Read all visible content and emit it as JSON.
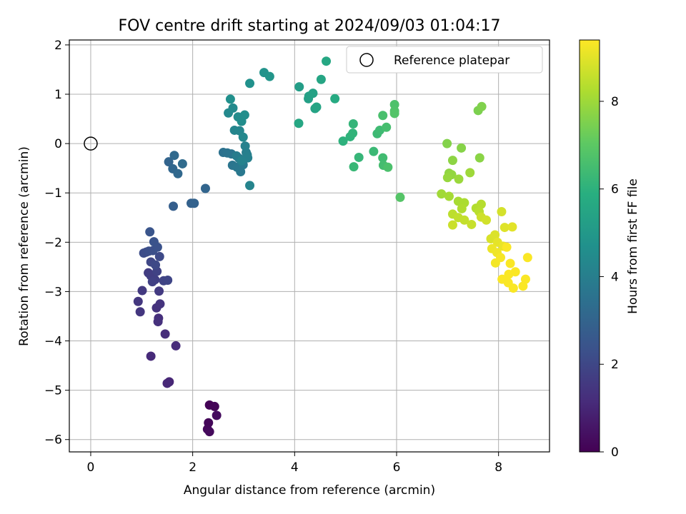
{
  "chart_data": {
    "type": "scatter",
    "title": "FOV centre drift starting at 2024/09/03 01:04:17",
    "xlabel": "Angular distance from reference (arcmin)",
    "ylabel": "Rotation from reference (arcmin)",
    "xlim": [
      -0.42,
      9.0
    ],
    "ylim": [
      -6.25,
      2.1
    ],
    "xticks": [
      0,
      2,
      4,
      6,
      8
    ],
    "yticks": [
      -6,
      -5,
      -4,
      -3,
      -2,
      -1,
      0,
      1,
      2
    ],
    "grid": true,
    "legend": {
      "placement": "top-right",
      "entries": [
        "Reference platepar"
      ]
    },
    "reference_point": {
      "x": 0,
      "y": 0
    },
    "colorbar": {
      "label": "Hours from first FF file",
      "min": 0,
      "max": 9.4,
      "ticks": [
        0,
        2,
        4,
        6,
        8
      ],
      "colormap": "viridis"
    },
    "series": [
      {
        "marker": "filled-circle",
        "color_by": "hours",
        "points": [
          {
            "x": 2.33,
            "y": -5.3,
            "c": 0.05
          },
          {
            "x": 2.43,
            "y": -5.33,
            "c": 0.1
          },
          {
            "x": 2.31,
            "y": -5.66,
            "c": 0.15
          },
          {
            "x": 2.29,
            "y": -5.79,
            "c": 0.2
          },
          {
            "x": 2.33,
            "y": -5.84,
            "c": 0.25
          },
          {
            "x": 2.47,
            "y": -5.51,
            "c": 0.3
          },
          {
            "x": 1.54,
            "y": -4.83,
            "c": 1.0
          },
          {
            "x": 1.5,
            "y": -4.86,
            "c": 1.05
          },
          {
            "x": 1.18,
            "y": -4.31,
            "c": 1.1
          },
          {
            "x": 1.67,
            "y": -4.1,
            "c": 1.15
          },
          {
            "x": 1.46,
            "y": -3.86,
            "c": 1.2
          },
          {
            "x": 1.33,
            "y": -3.54,
            "c": 1.25
          },
          {
            "x": 1.32,
            "y": -3.61,
            "c": 1.3
          },
          {
            "x": 1.29,
            "y": -3.33,
            "c": 1.35
          },
          {
            "x": 1.36,
            "y": -3.25,
            "c": 1.4
          },
          {
            "x": 0.97,
            "y": -3.41,
            "c": 1.45
          },
          {
            "x": 0.93,
            "y": -3.2,
            "c": 1.5
          },
          {
            "x": 1.01,
            "y": -2.98,
            "c": 1.55
          },
          {
            "x": 1.34,
            "y": -2.99,
            "c": 1.6
          },
          {
            "x": 1.13,
            "y": -2.62,
            "c": 1.65
          },
          {
            "x": 1.18,
            "y": -2.68,
            "c": 1.7
          },
          {
            "x": 1.26,
            "y": -2.76,
            "c": 1.75
          },
          {
            "x": 1.21,
            "y": -2.8,
            "c": 1.8
          },
          {
            "x": 1.3,
            "y": -2.59,
            "c": 1.85
          },
          {
            "x": 1.43,
            "y": -2.78,
            "c": 1.9
          },
          {
            "x": 1.51,
            "y": -2.77,
            "c": 1.95
          },
          {
            "x": 1.18,
            "y": -2.4,
            "c": 2.0
          },
          {
            "x": 1.27,
            "y": -2.46,
            "c": 2.05
          },
          {
            "x": 1.35,
            "y": -2.29,
            "c": 2.1
          },
          {
            "x": 1.09,
            "y": -2.2,
            "c": 2.15
          },
          {
            "x": 1.04,
            "y": -2.22,
            "c": 2.2
          },
          {
            "x": 1.14,
            "y": -2.18,
            "c": 2.25
          },
          {
            "x": 1.22,
            "y": -2.17,
            "c": 2.3
          },
          {
            "x": 1.31,
            "y": -2.1,
            "c": 2.35
          },
          {
            "x": 1.24,
            "y": -1.99,
            "c": 2.4
          },
          {
            "x": 1.16,
            "y": -1.79,
            "c": 2.45
          },
          {
            "x": 1.62,
            "y": -1.27,
            "c": 2.8
          },
          {
            "x": 1.97,
            "y": -1.21,
            "c": 2.9
          },
          {
            "x": 2.03,
            "y": -1.21,
            "c": 2.95
          },
          {
            "x": 2.25,
            "y": -0.91,
            "c": 3.05
          },
          {
            "x": 1.53,
            "y": -0.37,
            "c": 3.0
          },
          {
            "x": 1.61,
            "y": -0.51,
            "c": 3.1
          },
          {
            "x": 1.71,
            "y": -0.61,
            "c": 3.15
          },
          {
            "x": 1.64,
            "y": -0.24,
            "c": 3.2
          },
          {
            "x": 1.8,
            "y": -0.41,
            "c": 3.25
          },
          {
            "x": 2.6,
            "y": -0.18,
            "c": 3.5
          },
          {
            "x": 2.68,
            "y": -0.19,
            "c": 3.55
          },
          {
            "x": 2.76,
            "y": -0.21,
            "c": 3.6
          },
          {
            "x": 2.78,
            "y": -0.44,
            "c": 3.65
          },
          {
            "x": 2.87,
            "y": -0.48,
            "c": 3.7
          },
          {
            "x": 2.94,
            "y": -0.57,
            "c": 3.75
          },
          {
            "x": 2.99,
            "y": -0.43,
            "c": 3.8
          },
          {
            "x": 2.91,
            "y": -0.3,
            "c": 3.85
          },
          {
            "x": 2.86,
            "y": -0.25,
            "c": 3.9
          },
          {
            "x": 3.05,
            "y": -0.18,
            "c": 3.95
          },
          {
            "x": 3.07,
            "y": -0.23,
            "c": 4.0
          },
          {
            "x": 3.08,
            "y": -0.29,
            "c": 4.05
          },
          {
            "x": 3.03,
            "y": -0.05,
            "c": 4.1
          },
          {
            "x": 2.96,
            "y": -0.35,
            "c": 4.15
          },
          {
            "x": 3.12,
            "y": -0.85,
            "c": 4.2
          },
          {
            "x": 2.82,
            "y": 0.27,
            "c": 4.25
          },
          {
            "x": 2.92,
            "y": 0.26,
            "c": 4.3
          },
          {
            "x": 2.99,
            "y": 0.13,
            "c": 4.35
          },
          {
            "x": 2.7,
            "y": 0.62,
            "c": 4.4
          },
          {
            "x": 2.79,
            "y": 0.72,
            "c": 4.45
          },
          {
            "x": 2.89,
            "y": 0.54,
            "c": 4.5
          },
          {
            "x": 2.96,
            "y": 0.45,
            "c": 4.55
          },
          {
            "x": 3.02,
            "y": 0.58,
            "c": 4.6
          },
          {
            "x": 2.74,
            "y": 0.9,
            "c": 4.65
          },
          {
            "x": 3.12,
            "y": 1.22,
            "c": 4.7
          },
          {
            "x": 3.4,
            "y": 1.44,
            "c": 4.8
          },
          {
            "x": 3.51,
            "y": 1.36,
            "c": 4.85
          },
          {
            "x": 4.09,
            "y": 1.15,
            "c": 5.2
          },
          {
            "x": 4.27,
            "y": 0.91,
            "c": 5.25
          },
          {
            "x": 4.28,
            "y": 0.96,
            "c": 5.3
          },
          {
            "x": 4.36,
            "y": 1.02,
            "c": 5.35
          },
          {
            "x": 4.4,
            "y": 0.71,
            "c": 5.4
          },
          {
            "x": 4.43,
            "y": 0.74,
            "c": 5.45
          },
          {
            "x": 4.52,
            "y": 1.3,
            "c": 5.5
          },
          {
            "x": 4.08,
            "y": 0.41,
            "c": 5.55
          },
          {
            "x": 4.62,
            "y": 1.67,
            "c": 5.6
          },
          {
            "x": 4.79,
            "y": 0.91,
            "c": 5.7
          },
          {
            "x": 4.95,
            "y": 0.05,
            "c": 6.0
          },
          {
            "x": 5.09,
            "y": 0.14,
            "c": 6.05
          },
          {
            "x": 5.14,
            "y": 0.21,
            "c": 6.1
          },
          {
            "x": 5.15,
            "y": 0.4,
            "c": 6.15
          },
          {
            "x": 5.26,
            "y": -0.28,
            "c": 6.2
          },
          {
            "x": 5.16,
            "y": -0.47,
            "c": 6.25
          },
          {
            "x": 5.55,
            "y": -0.16,
            "c": 6.3
          },
          {
            "x": 5.62,
            "y": 0.2,
            "c": 6.35
          },
          {
            "x": 5.67,
            "y": 0.27,
            "c": 6.4
          },
          {
            "x": 5.73,
            "y": -0.29,
            "c": 6.45
          },
          {
            "x": 5.74,
            "y": -0.44,
            "c": 6.5
          },
          {
            "x": 5.8,
            "y": 0.33,
            "c": 6.55
          },
          {
            "x": 5.73,
            "y": 0.57,
            "c": 6.6
          },
          {
            "x": 5.83,
            "y": -0.48,
            "c": 6.65
          },
          {
            "x": 5.96,
            "y": 0.79,
            "c": 6.7
          },
          {
            "x": 5.96,
            "y": 0.66,
            "c": 6.75
          },
          {
            "x": 5.96,
            "y": 0.61,
            "c": 6.8
          },
          {
            "x": 6.07,
            "y": -1.09,
            "c": 6.85
          },
          {
            "x": 7.6,
            "y": 0.67,
            "c": 7.5
          },
          {
            "x": 7.67,
            "y": 0.75,
            "c": 7.55
          },
          {
            "x": 6.99,
            "y": 0.0,
            "c": 7.6
          },
          {
            "x": 7.27,
            "y": -0.09,
            "c": 7.65
          },
          {
            "x": 7.63,
            "y": -0.29,
            "c": 7.7
          },
          {
            "x": 7.1,
            "y": -0.34,
            "c": 7.75
          },
          {
            "x": 7.03,
            "y": -0.6,
            "c": 7.8
          },
          {
            "x": 7.08,
            "y": -0.63,
            "c": 7.85
          },
          {
            "x": 7.0,
            "y": -0.69,
            "c": 7.9
          },
          {
            "x": 7.22,
            "y": -0.72,
            "c": 7.95
          },
          {
            "x": 7.44,
            "y": -0.59,
            "c": 8.0
          },
          {
            "x": 6.88,
            "y": -1.02,
            "c": 8.05
          },
          {
            "x": 7.03,
            "y": -1.07,
            "c": 8.1
          },
          {
            "x": 7.21,
            "y": -1.17,
            "c": 8.15
          },
          {
            "x": 7.33,
            "y": -1.2,
            "c": 8.2
          },
          {
            "x": 7.28,
            "y": -1.32,
            "c": 8.25
          },
          {
            "x": 7.56,
            "y": -1.31,
            "c": 8.3
          },
          {
            "x": 7.66,
            "y": -1.23,
            "c": 8.35
          },
          {
            "x": 7.62,
            "y": -1.38,
            "c": 8.4
          },
          {
            "x": 7.1,
            "y": -1.43,
            "c": 8.45
          },
          {
            "x": 7.21,
            "y": -1.5,
            "c": 8.5
          },
          {
            "x": 7.33,
            "y": -1.55,
            "c": 8.55
          },
          {
            "x": 7.47,
            "y": -1.64,
            "c": 8.6
          },
          {
            "x": 7.1,
            "y": -1.65,
            "c": 8.65
          },
          {
            "x": 7.66,
            "y": -1.49,
            "c": 8.7
          },
          {
            "x": 7.76,
            "y": -1.55,
            "c": 8.75
          },
          {
            "x": 8.06,
            "y": -1.38,
            "c": 8.8
          },
          {
            "x": 7.85,
            "y": -1.93,
            "c": 8.85
          },
          {
            "x": 7.93,
            "y": -1.85,
            "c": 8.9
          },
          {
            "x": 8.12,
            "y": -1.7,
            "c": 8.95
          },
          {
            "x": 8.27,
            "y": -1.69,
            "c": 9.0
          },
          {
            "x": 7.98,
            "y": -2.0,
            "c": 9.05
          },
          {
            "x": 8.09,
            "y": -2.08,
            "c": 9.1
          },
          {
            "x": 7.87,
            "y": -2.13,
            "c": 9.15
          },
          {
            "x": 7.97,
            "y": -2.21,
            "c": 9.2
          },
          {
            "x": 7.94,
            "y": -2.42,
            "c": 9.25
          },
          {
            "x": 8.04,
            "y": -2.31,
            "c": 9.3
          },
          {
            "x": 8.16,
            "y": -2.1,
            "c": 9.35
          },
          {
            "x": 8.23,
            "y": -2.43,
            "c": 9.35
          },
          {
            "x": 8.2,
            "y": -2.65,
            "c": 9.35
          },
          {
            "x": 8.33,
            "y": -2.6,
            "c": 9.35
          },
          {
            "x": 8.07,
            "y": -2.75,
            "c": 9.35
          },
          {
            "x": 8.19,
            "y": -2.82,
            "c": 9.35
          },
          {
            "x": 8.29,
            "y": -2.93,
            "c": 9.35
          },
          {
            "x": 8.48,
            "y": -2.89,
            "c": 9.35
          },
          {
            "x": 8.53,
            "y": -2.75,
            "c": 9.35
          },
          {
            "x": 8.57,
            "y": -2.31,
            "c": 9.35
          }
        ]
      }
    ]
  }
}
